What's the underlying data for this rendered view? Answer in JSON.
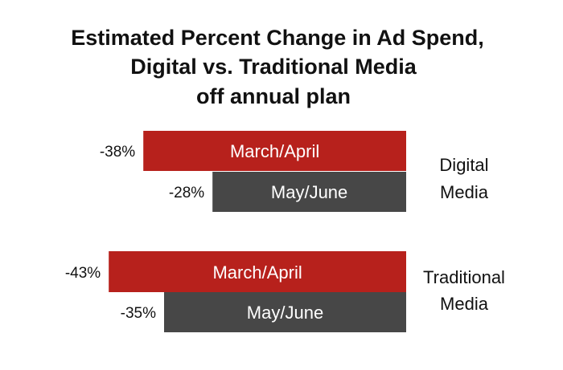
{
  "chart_data": {
    "type": "bar",
    "orientation": "horizontal",
    "title": [
      "Estimated Percent Change in Ad Spend,",
      "Digital vs. Traditional Media",
      "off annual plan"
    ],
    "xlabel": "",
    "ylabel": "",
    "grid": false,
    "groups": [
      {
        "name_lines": [
          "Digital",
          "Media"
        ],
        "bars": [
          {
            "label": "March/April",
            "value": -38,
            "value_label": "-38%",
            "color": "#b7211c"
          },
          {
            "label": "May/June",
            "value": -28,
            "value_label": "-28%",
            "color": "#474747"
          }
        ]
      },
      {
        "name_lines": [
          "Traditional",
          "Media"
        ],
        "bars": [
          {
            "label": "March/April",
            "value": -43,
            "value_label": "-43%",
            "color": "#b7211c"
          },
          {
            "label": "May/June",
            "value": -35,
            "value_label": "-35%",
            "color": "#474747"
          }
        ]
      }
    ]
  }
}
